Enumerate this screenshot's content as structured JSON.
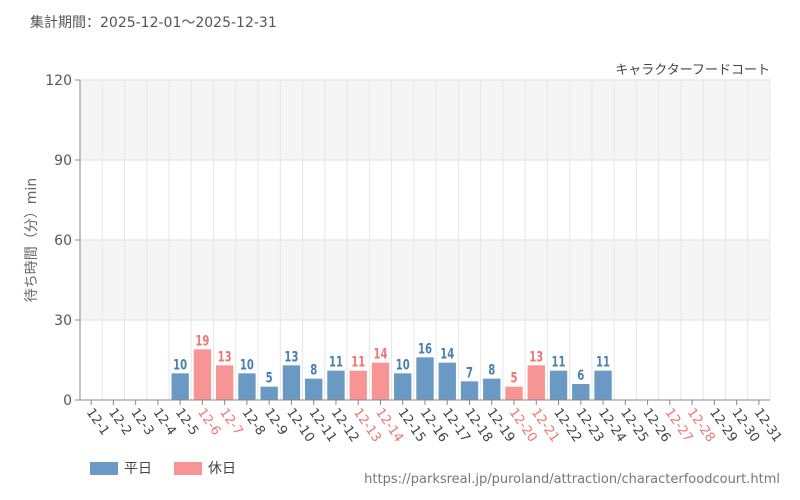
{
  "header": {
    "period_label": "集計期間：2025-12-01～2025-12-31"
  },
  "footer": {
    "url": "https://parksreal.jp/puroland/attraction/characterfoodcourt.html"
  },
  "legend": [
    {
      "label": "平日",
      "color": "#6a9ac4"
    },
    {
      "label": "休日",
      "color": "#f79595"
    }
  ],
  "colors": {
    "weekday": "#6a9ac4",
    "holiday": "#f79595",
    "weekday_text": "#4a7fb0",
    "holiday_text": "#f07575"
  },
  "chart_data": {
    "type": "bar",
    "title": "キャラクターフードコート",
    "xlabel": "",
    "ylabel": "待ち時間（分）min",
    "ylim": [
      0,
      120
    ],
    "yticks": [
      0,
      30,
      60,
      90,
      120
    ],
    "categories": [
      "12-1",
      "12-2",
      "12-3",
      "12-4",
      "12-5",
      "12-6",
      "12-7",
      "12-8",
      "12-9",
      "12-10",
      "12-11",
      "12-12",
      "12-13",
      "12-14",
      "12-15",
      "12-16",
      "12-17",
      "12-18",
      "12-19",
      "12-20",
      "12-21",
      "12-22",
      "12-23",
      "12-24",
      "12-25",
      "12-26",
      "12-27",
      "12-28",
      "12-29",
      "12-30",
      "12-31"
    ],
    "values": [
      null,
      null,
      null,
      null,
      10,
      19,
      13,
      10,
      5,
      13,
      8,
      11,
      11,
      14,
      10,
      16,
      14,
      7,
      8,
      5,
      13,
      11,
      6,
      11,
      null,
      null,
      null,
      null,
      null,
      null,
      null
    ],
    "holiday": [
      false,
      false,
      false,
      false,
      false,
      true,
      true,
      false,
      false,
      false,
      false,
      false,
      true,
      true,
      false,
      false,
      false,
      false,
      false,
      true,
      true,
      false,
      false,
      false,
      false,
      false,
      true,
      true,
      false,
      false,
      false
    ]
  }
}
